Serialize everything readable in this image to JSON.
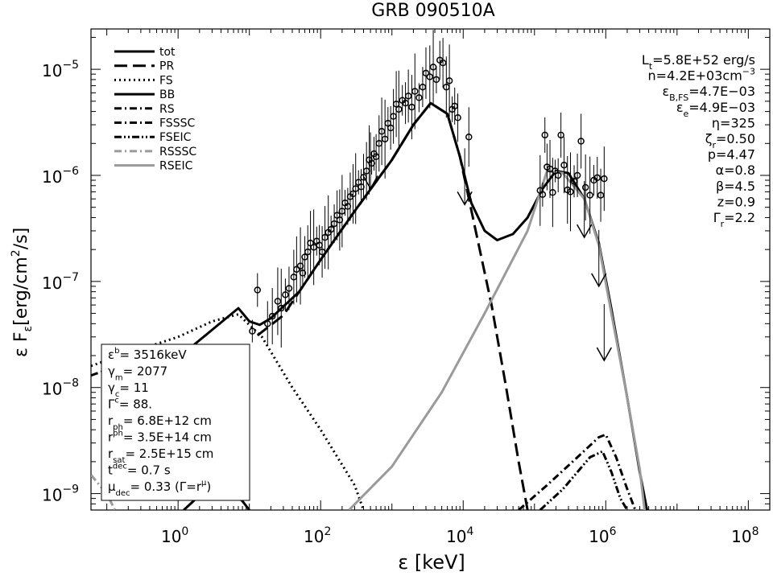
{
  "chart_data": {
    "type": "line",
    "title": "GRB 090510A",
    "x_axis": {
      "label": "ε  [keV]",
      "scale": "log",
      "range": [
        0.06,
        200000000
      ],
      "ticks": [
        {
          "value": 1,
          "base": "10",
          "exp": "0"
        },
        {
          "value": 100,
          "base": "10",
          "exp": "2"
        },
        {
          "value": 10000,
          "base": "10",
          "exp": "4"
        },
        {
          "value": 1000000,
          "base": "10",
          "exp": "6"
        },
        {
          "value": 100000000,
          "base": "10",
          "exp": "8"
        }
      ]
    },
    "y_axis": {
      "label_main": "ε F",
      "label_sub": "ε",
      "label_rest": "[erg/cm",
      "label_sup": "2",
      "label_end": "/s]",
      "scale": "log",
      "range": [
        7e-10,
        2.4e-05
      ],
      "ticks": [
        {
          "value": 1e-09,
          "base": "10",
          "exp": "−9"
        },
        {
          "value": 1e-08,
          "base": "10",
          "exp": "−8"
        },
        {
          "value": 1e-07,
          "base": "10",
          "exp": "−7"
        },
        {
          "value": 1e-06,
          "base": "10",
          "exp": "−6"
        },
        {
          "value": 1e-05,
          "base": "10",
          "exp": "−5"
        }
      ]
    },
    "legend": {
      "placement": "top-left",
      "entries": [
        {
          "name": "tot",
          "color": "#000000",
          "dash": "solid"
        },
        {
          "name": "PR",
          "color": "#000000",
          "dash": "long-dash"
        },
        {
          "name": "FS",
          "color": "#000000",
          "dash": "dot"
        },
        {
          "name": "BB",
          "color": "#000000",
          "dash": "solid"
        },
        {
          "name": "RS",
          "color": "#000000",
          "dash": "dash-dot"
        },
        {
          "name": "FSSSC",
          "color": "#000000",
          "dash": "dash-dot"
        },
        {
          "name": "FSEIC",
          "color": "#000000",
          "dash": "dash-dot-dot"
        },
        {
          "name": "RSSSC",
          "color": "#9a9a9a",
          "dash": "dash-dot"
        },
        {
          "name": "RSEIC",
          "color": "#9a9a9a",
          "dash": "solid"
        }
      ]
    },
    "params_right": [
      {
        "main": "L",
        "sub": "t",
        "rest": "=5.8E+52 erg/s"
      },
      {
        "main": "n=4.2E+03cm",
        "sup": "−3"
      },
      {
        "main": "ε",
        "sub": "B,FS",
        "rest": "=4.7E−03"
      },
      {
        "main": "ε",
        "sub": "e",
        "rest": "=4.9E−03"
      },
      {
        "main": "η=325"
      },
      {
        "main": "ζ",
        "sub": "r",
        "rest": "=0.50"
      },
      {
        "main": "p=4.47"
      },
      {
        "main": "α=0.8"
      },
      {
        "main": "β=4.5"
      },
      {
        "main": "z=0.9"
      },
      {
        "main": "Γ",
        "sub": "r",
        "rest": "=2.2"
      }
    ],
    "params_box": [
      {
        "main": "ε",
        "sup": "b",
        "rest": "=  3516keV"
      },
      {
        "main": "γ",
        "sub": "m",
        "rest": "=  2077"
      },
      {
        "main": "γ",
        "sub": "c",
        "rest": "=  11"
      },
      {
        "main": "Γ",
        "sup": "c",
        "rest": "=  88."
      },
      {
        "main": "r",
        "sub": "ph",
        "rest": "=  6.8E+12 cm"
      },
      {
        "main": "r",
        "sup": "ph",
        "rest": "=  3.5E+14 cm"
      },
      {
        "main": "r",
        "sub": "sat",
        "rest": "=  2.5E+15 cm"
      },
      {
        "main": "t",
        "sup": "dec",
        "rest": "=  0.7 s"
      },
      {
        "main": "μ",
        "sub": "dec",
        "rest": "=  0.33 (Γ=r",
        "sup2": "μ",
        "end": ")"
      }
    ],
    "series": [
      {
        "name": "tot",
        "color": "#000000",
        "dash": "solid",
        "points": [
          [
            1.3,
            2.2e-08
          ],
          [
            3,
            3.5e-08
          ],
          [
            7,
            5.6e-08
          ],
          [
            10,
            4.2e-08
          ],
          [
            14,
            3.9e-08
          ],
          [
            20,
            4.5e-08
          ],
          [
            50,
            8e-08
          ],
          [
            100,
            1.6e-07
          ],
          [
            300,
            4.6e-07
          ],
          [
            1000,
            1.4e-06
          ],
          [
            2000,
            3e-06
          ],
          [
            3500,
            4.8e-06
          ],
          [
            6000,
            3.8e-06
          ],
          [
            9000,
            1.5e-06
          ],
          [
            13000,
            5.5e-07
          ],
          [
            20000,
            3e-07
          ],
          [
            30000,
            2.45e-07
          ],
          [
            50000,
            2.8e-07
          ],
          [
            80000,
            4e-07
          ],
          [
            130000,
            7.5e-07
          ],
          [
            200000,
            1.1e-06
          ],
          [
            300000,
            1.05e-06
          ],
          [
            500000,
            6e-07
          ],
          [
            800000,
            2.3e-07
          ],
          [
            1200000,
            5.5e-08
          ],
          [
            2000000,
            8e-09
          ],
          [
            3000000,
            1.6e-09
          ],
          [
            3800000,
            7e-10
          ]
        ]
      },
      {
        "name": "PR",
        "color": "#000000",
        "dash": "long-dash",
        "points": [
          [
            13,
            3.1e-08
          ],
          [
            30,
            4.8e-08
          ],
          [
            100,
            1.6e-07
          ],
          [
            300,
            4.6e-07
          ],
          [
            1000,
            1.4e-06
          ],
          [
            2000,
            3e-06
          ],
          [
            3500,
            4.8e-06
          ],
          [
            6000,
            3.8e-06
          ],
          [
            9000,
            1.5e-06
          ],
          [
            15000,
            3e-07
          ],
          [
            25000,
            6e-08
          ],
          [
            40000,
            1e-08
          ],
          [
            60000,
            2e-09
          ],
          [
            80000,
            7e-10
          ]
        ]
      },
      {
        "name": "FS",
        "color": "#000000",
        "dash": "dot",
        "points": [
          [
            0.06,
            1.6e-08
          ],
          [
            0.3,
            2.3e-08
          ],
          [
            1,
            3e-08
          ],
          [
            3,
            4.2e-08
          ],
          [
            7,
            4.9e-08
          ],
          [
            15,
            3e-08
          ],
          [
            40,
            1e-08
          ],
          [
            100,
            4e-09
          ],
          [
            300,
            1.2e-09
          ],
          [
            400,
            7e-10
          ]
        ]
      },
      {
        "name": "BB",
        "color": "#000000",
        "dash": "solid",
        "points": [
          [
            1.2,
            7e-10
          ],
          [
            2,
            9.6e-10
          ],
          [
            4,
            1.1e-09
          ],
          [
            6,
            1.02e-09
          ],
          [
            8,
            8.5e-10
          ],
          [
            10,
            7e-10
          ]
        ]
      },
      {
        "name": "RS",
        "color": "#000000",
        "dash": "dash-dot",
        "points": [
          [
            0.06,
            1.3e-08
          ],
          [
            0.3,
            1.9e-08
          ],
          [
            1,
            2.4e-08
          ],
          [
            2,
            2.5e-08
          ]
        ]
      },
      {
        "name": "FSSSC",
        "color": "#000000",
        "dash": "dash-dot",
        "points": [
          [
            60000,
            7e-10
          ],
          [
            150000,
            1.2e-09
          ],
          [
            400000,
            2.2e-09
          ],
          [
            800000,
            3.4e-09
          ],
          [
            1000000,
            3.6e-09
          ],
          [
            1400000,
            2.2e-09
          ],
          [
            2000000,
            1.1e-09
          ],
          [
            2600000,
            7e-10
          ]
        ]
      },
      {
        "name": "FSEIC",
        "color": "#000000",
        "dash": "dash-dot-dot",
        "points": [
          [
            120000,
            7e-10
          ],
          [
            250000,
            1.1e-09
          ],
          [
            600000,
            2.2e-09
          ],
          [
            900000,
            2.5e-09
          ],
          [
            1200000,
            1.6e-09
          ],
          [
            1600000,
            9e-10
          ],
          [
            2000000,
            7e-10
          ]
        ]
      },
      {
        "name": "RSSSC",
        "color": "#9a9a9a",
        "dash": "dash-dot",
        "points": [
          [
            0.06,
            1.5e-09
          ],
          [
            0.1,
            1e-09
          ],
          [
            0.13,
            7e-10
          ]
        ]
      },
      {
        "name": "RSEIC",
        "color": "#9a9a9a",
        "dash": "solid",
        "points": [
          [
            250,
            7e-10
          ],
          [
            1000,
            1.8e-09
          ],
          [
            5000,
            9e-09
          ],
          [
            20000,
            5e-08
          ],
          [
            80000,
            3e-07
          ],
          [
            150000,
            1.1e-06
          ],
          [
            250000,
            1.05e-06
          ],
          [
            500000,
            6e-07
          ],
          [
            800000,
            2.2e-07
          ],
          [
            1200000,
            5e-08
          ],
          [
            2000000,
            8e-09
          ],
          [
            3000000,
            1.7e-09
          ],
          [
            3500000,
            7e-10
          ]
        ]
      }
    ],
    "data_points": [
      [
        11,
        3.4e-08
      ],
      [
        13,
        8.3e-08
      ],
      [
        18,
        4e-08
      ],
      [
        21,
        4.7e-08
      ],
      [
        25,
        6.5e-08
      ],
      [
        28,
        5.6e-08
      ],
      [
        32,
        7.5e-08
      ],
      [
        36,
        8.6e-08
      ],
      [
        42,
        1.1e-07
      ],
      [
        46,
        1.3e-07
      ],
      [
        52,
        1.4e-07
      ],
      [
        56,
        1.2e-07
      ],
      [
        60,
        1.7e-07
      ],
      [
        66,
        1.9e-07
      ],
      [
        72,
        2.3e-07
      ],
      [
        80,
        2.1e-07
      ],
      [
        88,
        2.4e-07
      ],
      [
        96,
        2.2e-07
      ],
      [
        105,
        1.9e-07
      ],
      [
        115,
        2.6e-07
      ],
      [
        128,
        2.9e-07
      ],
      [
        140,
        3.1e-07
      ],
      [
        155,
        3.5e-07
      ],
      [
        170,
        4.2e-07
      ],
      [
        185,
        3.8e-07
      ],
      [
        200,
        4.6e-07
      ],
      [
        220,
        5.5e-07
      ],
      [
        240,
        5.1e-07
      ],
      [
        260,
        6.3e-07
      ],
      [
        285,
        6.7e-07
      ],
      [
        310,
        7.5e-07
      ],
      [
        340,
        8.6e-07
      ],
      [
        370,
        7.8e-07
      ],
      [
        400,
        9.6e-07
      ],
      [
        440,
        1.1e-06
      ],
      [
        480,
        1.4e-06
      ],
      [
        520,
        1.3e-06
      ],
      [
        560,
        1.6e-06
      ],
      [
        600,
        1.5e-06
      ],
      [
        660,
        2e-06
      ],
      [
        720,
        2.6e-06
      ],
      [
        800,
        2.2e-06
      ],
      [
        880,
        3.1e-06
      ],
      [
        960,
        2.8e-06
      ],
      [
        1050,
        3.6e-06
      ],
      [
        1150,
        4.7e-06
      ],
      [
        1250,
        4.2e-06
      ],
      [
        1400,
        5.1e-06
      ],
      [
        1550,
        4.8e-06
      ],
      [
        1700,
        5.6e-06
      ],
      [
        1900,
        4.4e-06
      ],
      [
        2100,
        6.2e-06
      ],
      [
        2400,
        5.4e-06
      ],
      [
        2700,
        6.8e-06
      ],
      [
        3000,
        9.2e-06
      ],
      [
        3400,
        8.5e-06
      ],
      [
        3800,
        1.05e-05
      ],
      [
        4200,
        8e-06
      ],
      [
        4700,
        1.22e-05
      ],
      [
        5200,
        1.15e-05
      ],
      [
        5800,
        6.8e-06
      ],
      [
        6400,
        7.8e-06
      ],
      [
        7000,
        4.2e-06
      ],
      [
        7600,
        4.5e-06
      ],
      [
        8400,
        3.5e-06
      ],
      [
        12000,
        2.3e-06
      ],
      [
        120000,
        7.2e-07
      ],
      [
        130000,
        6.6e-07
      ],
      [
        140000,
        2.4e-06
      ],
      [
        150000,
        1.2e-06
      ],
      [
        165000,
        1.15e-06
      ],
      [
        180000,
        6.9e-07
      ],
      [
        195000,
        1.1e-06
      ],
      [
        215000,
        1e-06
      ],
      [
        235000,
        2.4e-06
      ],
      [
        260000,
        1.25e-06
      ],
      [
        290000,
        7.3e-07
      ],
      [
        320000,
        7e-07
      ],
      [
        360000,
        8.8e-07
      ],
      [
        400000,
        1e-06
      ],
      [
        450000,
        2.1e-06
      ],
      [
        520000,
        7.7e-07
      ],
      [
        600000,
        6.5e-07
      ],
      [
        680000,
        9e-07
      ],
      [
        760000,
        9.5e-07
      ],
      [
        850000,
        6.5e-07
      ],
      [
        950000,
        9.3e-07
      ]
    ],
    "upper_limits": [
      [
        500,
        7.5e-07
      ],
      [
        10500,
        5.3e-07
      ],
      [
        500000,
        2.6e-07
      ],
      [
        800000,
        9e-08
      ],
      [
        950000,
        1.8e-08
      ]
    ]
  }
}
